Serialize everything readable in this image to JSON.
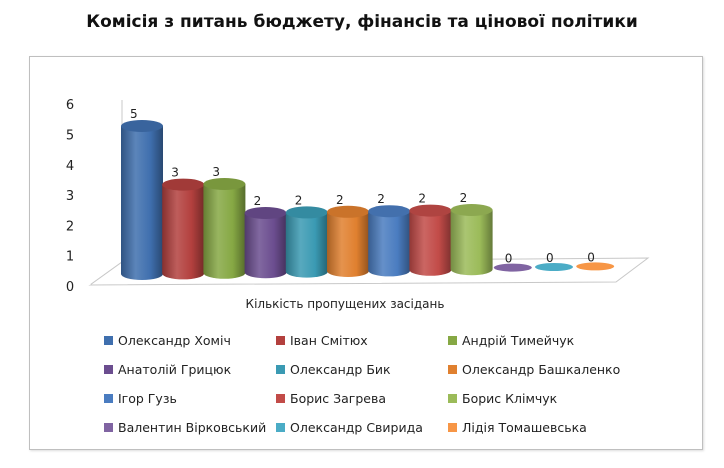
{
  "chart_data": {
    "type": "bar",
    "title": "Комісія з питань бюджету, фінансів та цінової політики",
    "xlabel": "Кількість пропущених засідань",
    "ylabel": "",
    "ylim": [
      0,
      6
    ],
    "yticks": [
      "0",
      "1",
      "2",
      "3",
      "4",
      "5",
      "6"
    ],
    "series": [
      {
        "name": "Олександр Хоміч",
        "value": 5,
        "color": "#3f6fae"
      },
      {
        "name": "Іван Смітюх",
        "value": 3,
        "color": "#b3403e"
      },
      {
        "name": "Андрій Тимейчук",
        "value": 3,
        "color": "#86a844"
      },
      {
        "name": "Анатолій Грицюк",
        "value": 2,
        "color": "#6b4d8f"
      },
      {
        "name": "Олександр Бик",
        "value": 2,
        "color": "#3a9ab3"
      },
      {
        "name": "Олександр Башкаленко",
        "value": 2,
        "color": "#e0802f"
      },
      {
        "name": "Ігор Гузь",
        "value": 2,
        "color": "#4a7cc0"
      },
      {
        "name": "Борис Загрева",
        "value": 2,
        "color": "#c24b48"
      },
      {
        "name": "Борис Клімчук",
        "value": 2,
        "color": "#9bbb59"
      },
      {
        "name": "Валентин Вірковський",
        "value": 0,
        "color": "#8064a2"
      },
      {
        "name": "Олександр Свирида",
        "value": 0,
        "color": "#4bacc6"
      },
      {
        "name": "Лідія Томашевська",
        "value": 0,
        "color": "#f79646"
      }
    ]
  }
}
